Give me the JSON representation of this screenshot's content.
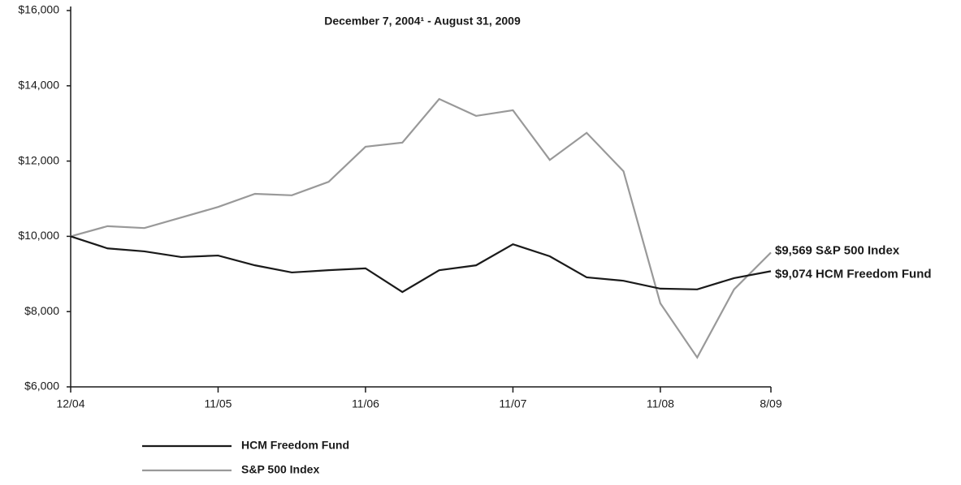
{
  "chart_data": {
    "type": "line",
    "title": "December 7, 2004¹ - August 31, 2009",
    "categories": [
      "12/04",
      null,
      null,
      null,
      "11/05",
      null,
      null,
      null,
      "11/06",
      null,
      null,
      null,
      "11/07",
      null,
      null,
      null,
      "11/08",
      null,
      null,
      "8/09"
    ],
    "series": [
      {
        "name": "HCM Freedom Fund",
        "color": "#1a1a1a",
        "values": [
          10000,
          9680,
          9600,
          9450,
          9490,
          9230,
          9040,
          9100,
          9150,
          8520,
          9100,
          9230,
          9790,
          9470,
          8910,
          8820,
          8610,
          8590,
          8890,
          9074
        ]
      },
      {
        "name": "S&P 500 Index",
        "color": "#999999",
        "values": [
          10000,
          10270,
          10220,
          10500,
          10780,
          11130,
          11090,
          11450,
          12380,
          12490,
          13650,
          13200,
          13350,
          12030,
          12750,
          11730,
          8220,
          6780,
          8590,
          9569
        ]
      }
    ],
    "annotations": [
      "$9,569 S&P 500 Index",
      "$9,074 HCM Freedom Fund"
    ],
    "ylim": [
      6000,
      16000
    ],
    "yticks": [
      {
        "value": 6000,
        "label": "$6,000"
      },
      {
        "value": 8000,
        "label": "$8,000"
      },
      {
        "value": 10000,
        "label": "$10,000"
      },
      {
        "value": 12000,
        "label": "$12,000"
      },
      {
        "value": 14000,
        "label": "$14,000"
      },
      {
        "value": 16000,
        "label": "$16,000"
      }
    ],
    "grid": false
  }
}
